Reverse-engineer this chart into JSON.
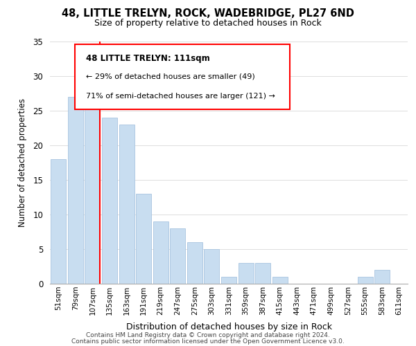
{
  "title": "48, LITTLE TRELYN, ROCK, WADEBRIDGE, PL27 6ND",
  "subtitle": "Size of property relative to detached houses in Rock",
  "xlabel": "Distribution of detached houses by size in Rock",
  "ylabel": "Number of detached properties",
  "categories": [
    "51sqm",
    "79sqm",
    "107sqm",
    "135sqm",
    "163sqm",
    "191sqm",
    "219sqm",
    "247sqm",
    "275sqm",
    "303sqm",
    "331sqm",
    "359sqm",
    "387sqm",
    "415sqm",
    "443sqm",
    "471sqm",
    "499sqm",
    "527sqm",
    "555sqm",
    "583sqm",
    "611sqm"
  ],
  "values": [
    18,
    27,
    27,
    24,
    23,
    13,
    9,
    8,
    6,
    5,
    1,
    3,
    3,
    1,
    0,
    0,
    0,
    0,
    1,
    2,
    0
  ],
  "bar_color": "#c8ddf0",
  "bar_edge_color": "#a8c4e0",
  "red_line_index": 2,
  "annotation_title": "48 LITTLE TRELYN: 111sqm",
  "annotation_line1": "← 29% of detached houses are smaller (49)",
  "annotation_line2": "71% of semi-detached houses are larger (121) →",
  "ylim": [
    0,
    35
  ],
  "yticks": [
    0,
    5,
    10,
    15,
    20,
    25,
    30,
    35
  ],
  "footer1": "Contains HM Land Registry data © Crown copyright and database right 2024.",
  "footer2": "Contains public sector information licensed under the Open Government Licence v3.0.",
  "bg_color": "#ffffff",
  "grid_color": "#dddddd"
}
